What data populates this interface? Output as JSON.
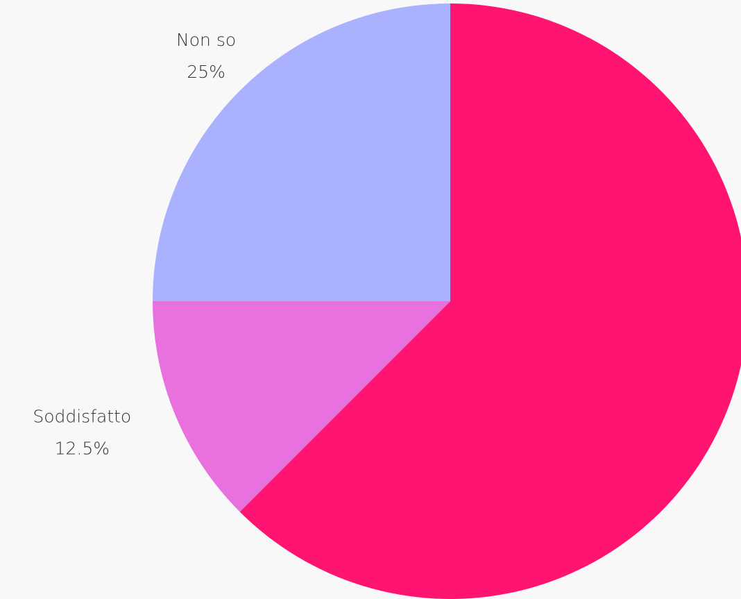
{
  "chart_data": {
    "type": "pie",
    "categories": [
      null,
      "Soddisfatto",
      "Non so"
    ],
    "values": [
      62.5,
      12.5,
      25
    ],
    "value_labels": [
      null,
      "12.5%",
      "25%"
    ],
    "colors": [
      "#ff1472",
      "#e871de",
      "#aab1ff"
    ]
  }
}
